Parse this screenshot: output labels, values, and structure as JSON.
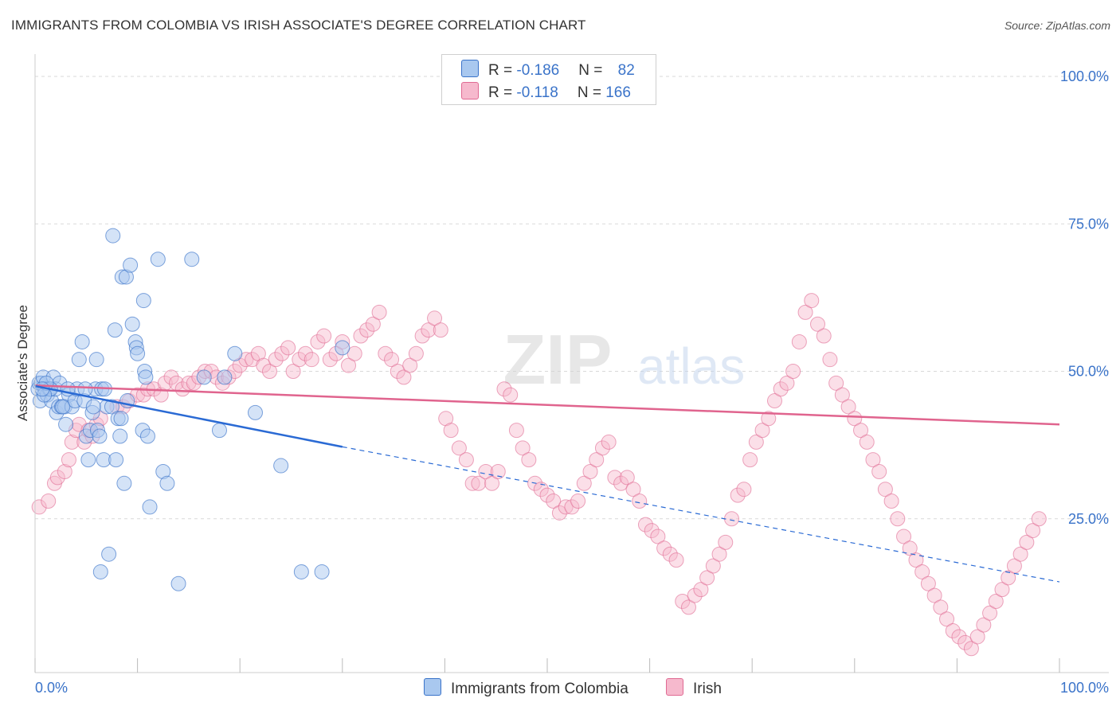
{
  "header": {
    "title": "IMMIGRANTS FROM COLOMBIA VS IRISH ASSOCIATE'S DEGREE CORRELATION CHART",
    "source": "Source: ZipAtlas.com"
  },
  "legend": {
    "rows": [
      {
        "r_label": "R = ",
        "r_value": "-0.186",
        "n_label": "N = ",
        "n_value": "82"
      },
      {
        "r_label": "R = ",
        "r_value": "-0.118",
        "n_label": "N = ",
        "n_value": "166"
      }
    ]
  },
  "bottom_legend": {
    "items": [
      "Immigrants from Colombia",
      "Irish"
    ]
  },
  "watermark": {
    "zip": "ZIP",
    "atlas": "atlas"
  },
  "colors": {
    "blue": "#3a73c9",
    "blue_fill": "#a9c8ef",
    "blue_line": "#2a6ad4",
    "pink": "#e06a93",
    "pink_fill": "#f6b9cd",
    "pink_line": "#e0648e",
    "grid": "#d9d9d9"
  },
  "chart_data": {
    "type": "scatter",
    "title": "IMMIGRANTS FROM COLOMBIA VS IRISH ASSOCIATE'S DEGREE CORRELATION CHART",
    "xlabel": "",
    "ylabel": "Associate's Degree",
    "xlim": [
      0,
      100
    ],
    "ylim": [
      0,
      100
    ],
    "x_tick_labels": [
      "0.0%",
      "100.0%"
    ],
    "y_ticks": [
      25,
      50,
      75,
      100
    ],
    "y_tick_labels": [
      "25.0%",
      "50.0%",
      "75.0%",
      "100.0%"
    ],
    "grid": true,
    "legend_position": "top-center",
    "series": [
      {
        "name": "Immigrants from Colombia",
        "color": "#a9c8ef",
        "trend": {
          "x0": 0,
          "y0": 47.5,
          "x1": 30,
          "y1": 37.2,
          "dashed_to_x": 100,
          "dashed_to_y": 14.3
        },
        "points": [
          [
            0.3,
            47
          ],
          [
            0.4,
            48
          ],
          [
            0.5,
            45
          ],
          [
            0.6,
            48
          ],
          [
            0.8,
            49
          ],
          [
            1.0,
            47
          ],
          [
            1.2,
            46
          ],
          [
            1.4,
            47
          ],
          [
            1.6,
            45
          ],
          [
            1.8,
            49
          ],
          [
            2.0,
            47
          ],
          [
            2.1,
            43
          ],
          [
            2.3,
            44
          ],
          [
            2.4,
            48
          ],
          [
            2.6,
            44
          ],
          [
            2.9,
            44
          ],
          [
            3.0,
            41
          ],
          [
            3.3,
            46
          ],
          [
            3.6,
            44
          ],
          [
            3.9,
            45
          ],
          [
            4.1,
            47
          ],
          [
            4.3,
            52
          ],
          [
            4.6,
            55
          ],
          [
            4.8,
            45
          ],
          [
            5.0,
            39
          ],
          [
            5.2,
            35
          ],
          [
            5.4,
            40
          ],
          [
            5.6,
            43
          ],
          [
            5.9,
            47
          ],
          [
            6.0,
            52
          ],
          [
            6.1,
            40
          ],
          [
            6.3,
            39
          ],
          [
            6.5,
            47
          ],
          [
            6.8,
            47
          ],
          [
            7.0,
            44
          ],
          [
            6.7,
            35
          ],
          [
            6.4,
            16
          ],
          [
            7.5,
            44
          ],
          [
            7.6,
            73
          ],
          [
            7.8,
            57
          ],
          [
            7.9,
            35
          ],
          [
            8.1,
            42
          ],
          [
            8.3,
            39
          ],
          [
            8.4,
            42
          ],
          [
            8.7,
            31
          ],
          [
            8.5,
            66
          ],
          [
            8.9,
            66
          ],
          [
            9.0,
            45
          ],
          [
            9.3,
            68
          ],
          [
            9.5,
            58
          ],
          [
            9.8,
            55
          ],
          [
            9.9,
            54
          ],
          [
            10.0,
            53
          ],
          [
            10.5,
            40
          ],
          [
            10.6,
            62
          ],
          [
            10.7,
            50
          ],
          [
            10.8,
            49
          ],
          [
            11.0,
            39
          ],
          [
            11.2,
            27
          ],
          [
            12.0,
            69
          ],
          [
            12.5,
            33
          ],
          [
            12.9,
            31
          ],
          [
            14.0,
            14
          ],
          [
            15.3,
            69
          ],
          [
            16.5,
            49
          ],
          [
            18.0,
            40
          ],
          [
            18.5,
            49
          ],
          [
            19.5,
            53
          ],
          [
            21.5,
            43
          ],
          [
            24.0,
            34
          ],
          [
            26.0,
            16
          ],
          [
            28.0,
            16
          ],
          [
            30.0,
            54
          ],
          [
            1.5,
            47
          ],
          [
            2.7,
            44
          ],
          [
            3.2,
            47
          ],
          [
            0.9,
            46
          ],
          [
            1.1,
            48
          ],
          [
            0.7,
            47
          ],
          [
            7.2,
            19
          ],
          [
            4.9,
            47
          ],
          [
            5.7,
            44
          ]
        ]
      },
      {
        "name": "Irish",
        "color": "#f6b9cd",
        "trend": {
          "x0": 0,
          "y0": 47.6,
          "x1": 100,
          "y1": 41.0
        },
        "points": [
          [
            0.4,
            27
          ],
          [
            1.3,
            28
          ],
          [
            1.9,
            31
          ],
          [
            2.2,
            32
          ],
          [
            2.9,
            33
          ],
          [
            3.3,
            35
          ],
          [
            3.6,
            38
          ],
          [
            4.0,
            40
          ],
          [
            4.3,
            41
          ],
          [
            4.8,
            38
          ],
          [
            5.2,
            40
          ],
          [
            5.6,
            39
          ],
          [
            6.0,
            41
          ],
          [
            6.4,
            42
          ],
          [
            8.0,
            44
          ],
          [
            8.6,
            44
          ],
          [
            9.2,
            45
          ],
          [
            10.0,
            46
          ],
          [
            10.6,
            46
          ],
          [
            11.0,
            47
          ],
          [
            11.6,
            47
          ],
          [
            12.3,
            46
          ],
          [
            12.7,
            48
          ],
          [
            13.3,
            49
          ],
          [
            13.8,
            48
          ],
          [
            14.4,
            47
          ],
          [
            15.0,
            48
          ],
          [
            15.5,
            48
          ],
          [
            16.0,
            49
          ],
          [
            16.6,
            50
          ],
          [
            17.2,
            50
          ],
          [
            17.7,
            49
          ],
          [
            18.3,
            48
          ],
          [
            18.9,
            49
          ],
          [
            19.5,
            50
          ],
          [
            20.0,
            51
          ],
          [
            20.6,
            52
          ],
          [
            21.2,
            52
          ],
          [
            21.8,
            53
          ],
          [
            22.3,
            51
          ],
          [
            22.9,
            50
          ],
          [
            23.5,
            52
          ],
          [
            24.1,
            53
          ],
          [
            24.7,
            54
          ],
          [
            25.2,
            50
          ],
          [
            25.8,
            52
          ],
          [
            26.4,
            53
          ],
          [
            27.0,
            52
          ],
          [
            27.6,
            55
          ],
          [
            28.2,
            56
          ],
          [
            28.8,
            52
          ],
          [
            29.4,
            53
          ],
          [
            30.0,
            55
          ],
          [
            30.6,
            51
          ],
          [
            31.2,
            53
          ],
          [
            31.8,
            56
          ],
          [
            32.4,
            57
          ],
          [
            33.0,
            58
          ],
          [
            33.6,
            60
          ],
          [
            34.2,
            53
          ],
          [
            34.8,
            52
          ],
          [
            35.4,
            50
          ],
          [
            36.0,
            49
          ],
          [
            36.6,
            51
          ],
          [
            37.2,
            53
          ],
          [
            37.8,
            56
          ],
          [
            38.4,
            57
          ],
          [
            39.0,
            59
          ],
          [
            39.6,
            57
          ],
          [
            40.1,
            42
          ],
          [
            40.6,
            40
          ],
          [
            41.4,
            37
          ],
          [
            42.1,
            35
          ],
          [
            42.7,
            31
          ],
          [
            43.3,
            31
          ],
          [
            44.0,
            33
          ],
          [
            44.6,
            31
          ],
          [
            45.2,
            33
          ],
          [
            45.8,
            47
          ],
          [
            46.4,
            46
          ],
          [
            47.0,
            40
          ],
          [
            47.6,
            37
          ],
          [
            48.2,
            35
          ],
          [
            48.8,
            31
          ],
          [
            49.4,
            30
          ],
          [
            50.0,
            29
          ],
          [
            50.6,
            28
          ],
          [
            51.2,
            26
          ],
          [
            51.8,
            27
          ],
          [
            52.4,
            27
          ],
          [
            53.0,
            28
          ],
          [
            53.6,
            31
          ],
          [
            54.2,
            33
          ],
          [
            54.8,
            35
          ],
          [
            55.4,
            37
          ],
          [
            56.0,
            38
          ],
          [
            56.6,
            32
          ],
          [
            57.2,
            31
          ],
          [
            57.8,
            32
          ],
          [
            58.4,
            30
          ],
          [
            59.0,
            28
          ],
          [
            59.6,
            24
          ],
          [
            60.2,
            23
          ],
          [
            60.8,
            22
          ],
          [
            61.4,
            20
          ],
          [
            62.0,
            19
          ],
          [
            62.6,
            18
          ],
          [
            63.2,
            11
          ],
          [
            63.8,
            10
          ],
          [
            64.4,
            12
          ],
          [
            65.0,
            13
          ],
          [
            65.6,
            15
          ],
          [
            66.2,
            17
          ],
          [
            66.8,
            19
          ],
          [
            67.4,
            21
          ],
          [
            68.0,
            25
          ],
          [
            68.6,
            29
          ],
          [
            69.2,
            30
          ],
          [
            69.8,
            35
          ],
          [
            70.4,
            38
          ],
          [
            71.0,
            40
          ],
          [
            71.6,
            42
          ],
          [
            72.2,
            45
          ],
          [
            72.8,
            47
          ],
          [
            73.4,
            48
          ],
          [
            74.0,
            50
          ],
          [
            74.6,
            55
          ],
          [
            75.2,
            60
          ],
          [
            75.8,
            62
          ],
          [
            76.4,
            58
          ],
          [
            77.0,
            56
          ],
          [
            77.6,
            52
          ],
          [
            78.2,
            48
          ],
          [
            78.8,
            46
          ],
          [
            79.4,
            44
          ],
          [
            80.0,
            42
          ],
          [
            80.6,
            40
          ],
          [
            81.2,
            38
          ],
          [
            81.8,
            35
          ],
          [
            82.4,
            33
          ],
          [
            83.0,
            30
          ],
          [
            83.6,
            28
          ],
          [
            84.2,
            25
          ],
          [
            84.8,
            22
          ],
          [
            85.4,
            20
          ],
          [
            86.0,
            18
          ],
          [
            86.6,
            16
          ],
          [
            87.2,
            14
          ],
          [
            87.8,
            12
          ],
          [
            88.4,
            10
          ],
          [
            89.0,
            8
          ],
          [
            89.6,
            6
          ],
          [
            90.2,
            5
          ],
          [
            90.8,
            4
          ],
          [
            91.4,
            3
          ],
          [
            92.0,
            5
          ],
          [
            92.6,
            7
          ],
          [
            93.2,
            9
          ],
          [
            93.8,
            11
          ],
          [
            94.4,
            13
          ],
          [
            95.0,
            15
          ],
          [
            95.6,
            17
          ],
          [
            96.2,
            19
          ],
          [
            96.8,
            21
          ],
          [
            97.4,
            23
          ],
          [
            98.0,
            25
          ]
        ]
      }
    ]
  }
}
